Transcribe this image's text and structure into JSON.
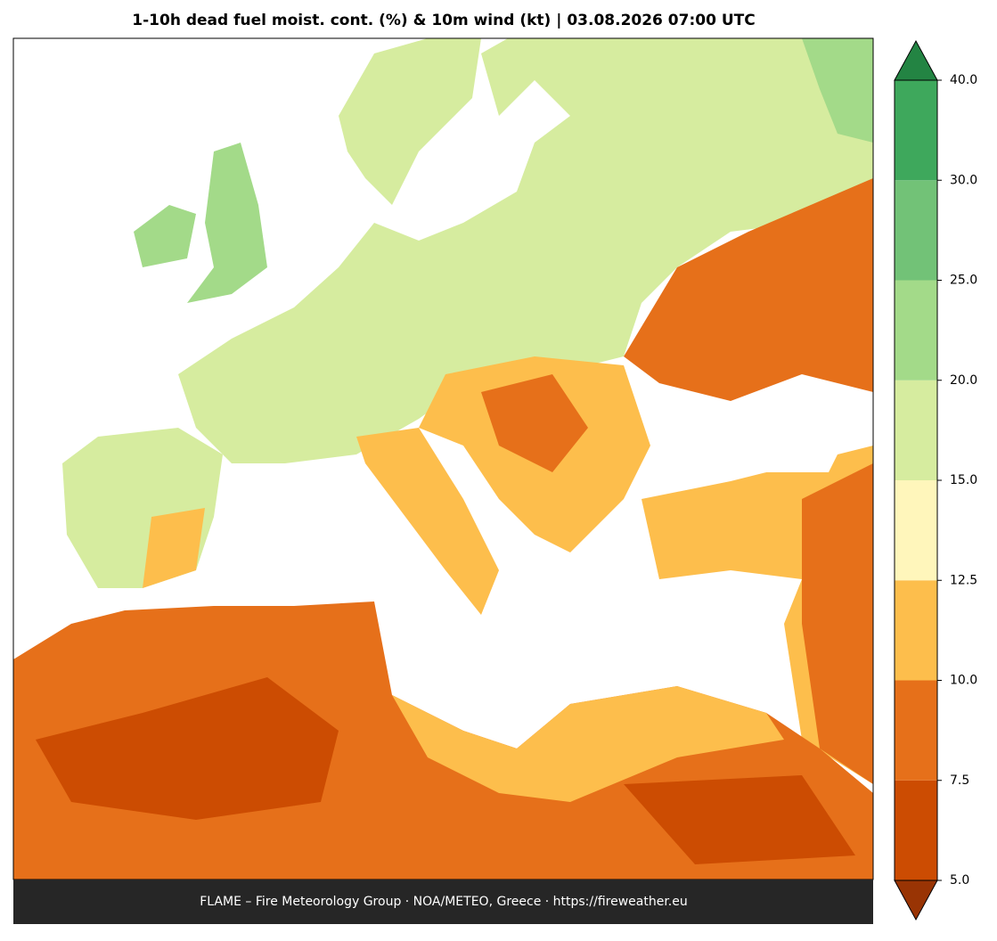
{
  "title": "1-10h dead fuel moist. cont. (%) & 10m wind (kt)  |  03.08.2026 07:00 UTC",
  "footer": "FLAME – Fire Meteorology Group · NOA/METEO, Greece · https://fireweather.eu",
  "colorbar": {
    "ticks": [
      {
        "value": 5,
        "label": "5.0"
      },
      {
        "value": 7.5,
        "label": "7.5"
      },
      {
        "value": 10,
        "label": "10.0"
      },
      {
        "value": 12.5,
        "label": "12.5"
      },
      {
        "value": 15,
        "label": "15.0"
      },
      {
        "value": 20,
        "label": "20.0"
      },
      {
        "value": 25,
        "label": "25.0"
      },
      {
        "value": 30,
        "label": "30.0"
      },
      {
        "value": 40,
        "label": "40.0"
      }
    ],
    "colors": [
      "#cc4c02",
      "#e6701a",
      "#fdbe4c",
      "#fff6bb",
      "#d6ec9f",
      "#a3da89",
      "#72c277",
      "#3ea85c"
    ],
    "under_color": "#993404",
    "over_color": "#238443"
  }
}
